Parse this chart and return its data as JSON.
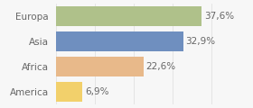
{
  "categories": [
    "Europa",
    "Asia",
    "Africa",
    "America"
  ],
  "values": [
    37.6,
    32.9,
    22.6,
    6.9
  ],
  "labels": [
    "37,6%",
    "32,9%",
    "22,6%",
    "6,9%"
  ],
  "bar_colors": [
    "#afc18a",
    "#6f8fbf",
    "#e8b98a",
    "#f2d06b"
  ],
  "background_color": "#f7f7f7",
  "xlim": [
    0,
    43
  ],
  "bar_height": 0.78,
  "label_fontsize": 7.5,
  "cat_fontsize": 7.5,
  "text_color": "#666666"
}
